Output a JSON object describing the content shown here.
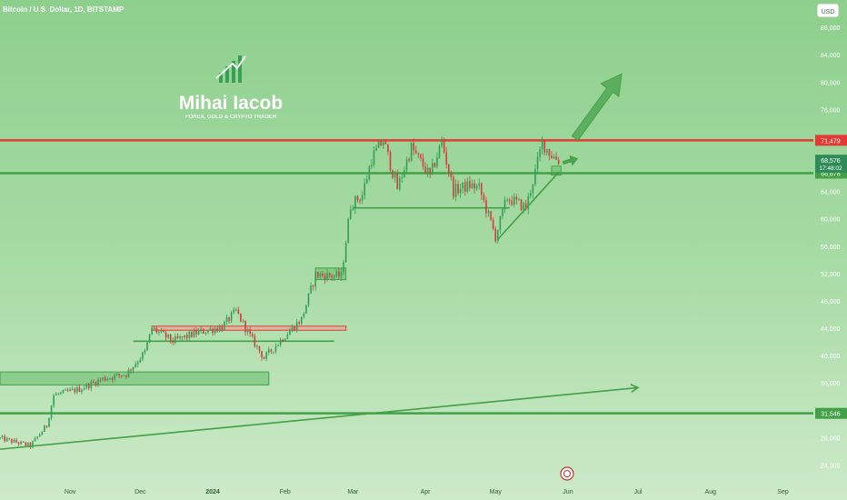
{
  "header": {
    "title": "Bitcoin / U.S. Dollar, 1D, BITSTAMP"
  },
  "currency_button": {
    "label": "USD"
  },
  "watermark": {
    "name": "Mihai Iacob",
    "tagline": "FOREX, GOLD & CRYPTO TRADER"
  },
  "colors": {
    "background_top": "#8dcf8d",
    "background_bottom": "#c9e9c6",
    "up_candle": "#2f9e57",
    "down_candle": "#d63a3a",
    "resistance": "#e53935",
    "support": "#43a047",
    "zone_fill": "#66bb6a",
    "arrow": "#43a047",
    "current_price": "#2e8b57"
  },
  "chart_data": {
    "type": "candlestick",
    "title": "Bitcoin / U.S. Dollar, 1D, BITSTAMP",
    "ylim": [
      21000,
      92000
    ],
    "x_range": [
      "2023-10-02",
      "2024-09-14"
    ],
    "y_ticks": [
      "24,000",
      "28,000",
      "32,000",
      "36,000",
      "40,000",
      "44,000",
      "48,000",
      "52,000",
      "56,000",
      "60,000",
      "64,000",
      "68,000",
      "72,000",
      "76,000",
      "80,000",
      "84,000",
      "88,000"
    ],
    "x_ticks": [
      {
        "label": "Nov",
        "date": "2023-11-01"
      },
      {
        "label": "Dec",
        "date": "2023-12-01"
      },
      {
        "label": "2024",
        "date": "2024-01-01"
      },
      {
        "label": "Feb",
        "date": "2024-02-01"
      },
      {
        "label": "Mar",
        "date": "2024-03-01"
      },
      {
        "label": "Apr",
        "date": "2024-04-01"
      },
      {
        "label": "May",
        "date": "2024-05-01"
      },
      {
        "label": "Jun",
        "date": "2024-06-01"
      },
      {
        "label": "Jul",
        "date": "2024-07-01"
      },
      {
        "label": "Aug",
        "date": "2024-08-01"
      },
      {
        "label": "Sep",
        "date": "2024-09-01"
      }
    ],
    "price_path": [
      [
        "2023-10-02",
        27900
      ],
      [
        "2023-10-15",
        26800
      ],
      [
        "2023-10-22",
        29800
      ],
      [
        "2023-10-25",
        34200
      ],
      [
        "2023-11-05",
        35100
      ],
      [
        "2023-11-15",
        36600
      ],
      [
        "2023-11-25",
        37300
      ],
      [
        "2023-12-03",
        40500
      ],
      [
        "2023-12-06",
        44000
      ],
      [
        "2023-12-15",
        42100
      ],
      [
        "2023-12-25",
        43300
      ],
      [
        "2024-01-05",
        44200
      ],
      [
        "2024-01-11",
        46500
      ],
      [
        "2024-01-17",
        42800
      ],
      [
        "2024-01-23",
        39600
      ],
      [
        "2024-01-31",
        42600
      ],
      [
        "2024-02-08",
        45300
      ],
      [
        "2024-02-14",
        51800
      ],
      [
        "2024-02-25",
        51600
      ],
      [
        "2024-02-29",
        62000
      ],
      [
        "2024-03-05",
        63500
      ],
      [
        "2024-03-09",
        68800
      ],
      [
        "2024-03-14",
        71500
      ],
      [
        "2024-03-20",
        64500
      ],
      [
        "2024-03-26",
        70400
      ],
      [
        "2024-04-03",
        66200
      ],
      [
        "2024-04-08",
        71300
      ],
      [
        "2024-04-13",
        64100
      ],
      [
        "2024-04-20",
        64900
      ],
      [
        "2024-04-24",
        64500
      ],
      [
        "2024-05-01",
        57400
      ],
      [
        "2024-05-06",
        63100
      ],
      [
        "2024-05-14",
        61600
      ],
      [
        "2024-05-18",
        66900
      ],
      [
        "2024-05-21",
        71100
      ],
      [
        "2024-05-25",
        69300
      ],
      [
        "2024-05-28",
        68576
      ]
    ],
    "horizontal_levels": [
      {
        "label": "71,479",
        "price": 71479,
        "role": "resistance"
      },
      {
        "label": "66,678",
        "price": 66678,
        "role": "support"
      },
      {
        "label": "31,546",
        "price": 31546,
        "role": "support"
      }
    ],
    "horizontal_segments": [
      {
        "price": 42100,
        "start": "2023-11-28",
        "end": "2024-02-22"
      },
      {
        "price": 61600,
        "start": "2024-03-01",
        "end": "2024-05-07"
      }
    ],
    "zones": [
      {
        "top": 44300,
        "bottom": 43700,
        "start": "2023-12-06",
        "end": "2024-02-27",
        "role": "resistance"
      },
      {
        "top": 37600,
        "bottom": 35700,
        "start": "2023-10-02",
        "end": "2024-01-25",
        "role": "support"
      },
      {
        "top": 52800,
        "bottom": 51100,
        "start": "2024-02-14",
        "end": "2024-02-27",
        "role": "support"
      },
      {
        "top": 67700,
        "bottom": 66400,
        "start": "2024-05-25",
        "end": "2024-05-29",
        "role": "support"
      }
    ],
    "trendlines": [
      {
        "from": [
          "2023-10-02",
          26300
        ],
        "to": [
          "2024-07-01",
          35300
        ],
        "arrow": true
      },
      {
        "from": [
          "2024-05-02",
          57000
        ],
        "to": [
          "2024-05-28",
          66800
        ],
        "arrow": false
      }
    ],
    "projection_arrows": [
      {
        "from": [
          "2024-05-30",
          68200
        ],
        "to": [
          "2024-06-05",
          68800
        ],
        "width": "thin"
      },
      {
        "from": [
          "2024-06-04",
          71800
        ],
        "to": [
          "2024-06-24",
          81200
        ],
        "width": "wide"
      }
    ],
    "current_price": {
      "value": "68,576",
      "countdown": "17:48:02"
    }
  }
}
